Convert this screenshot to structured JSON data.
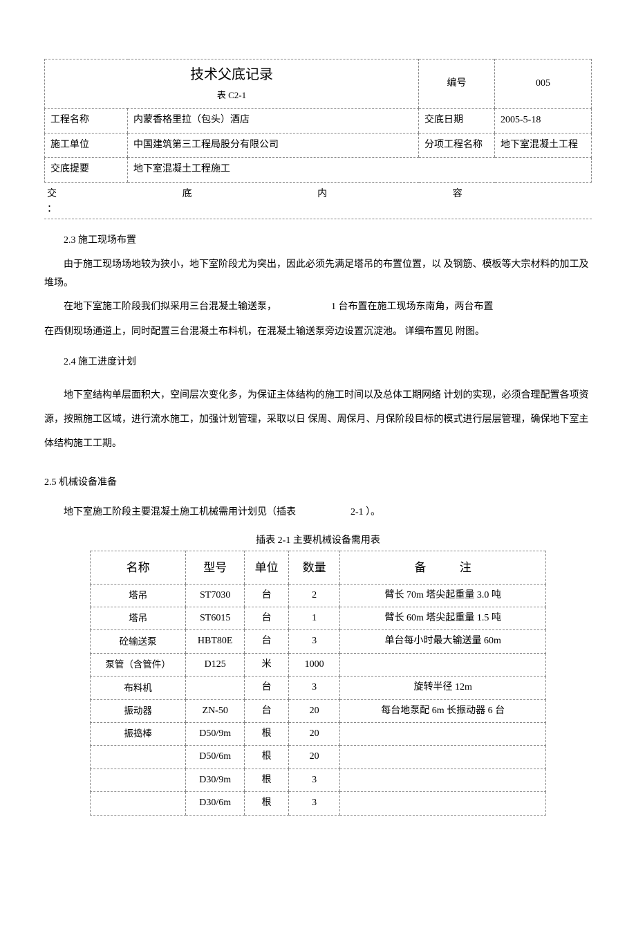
{
  "header": {
    "title": "技术父底记录",
    "subtitle": "表 C2-1",
    "numberLabel": "编号",
    "numberValue": "005",
    "rows": [
      {
        "l1": "工程名称",
        "v1": "内蒙香格里拉（包头）酒店",
        "l2": "交底日期",
        "v2": "2005-5-18"
      },
      {
        "l1": "施工单位",
        "v1": "中国建筑第三工程局股分有限公司",
        "l2": "分项工程名称",
        "v2": "地下室混凝土工程"
      }
    ],
    "summaryLabel": "交底提要",
    "summaryValue": "地下室混凝土工程施工",
    "spacedLabel": "交 底 内 容",
    "spacedChars": [
      "交",
      "底",
      "内",
      "容",
      "："
    ]
  },
  "body": {
    "s23_title": "2.3 施工现场布置",
    "s23_p1": "由于施工现场场地较为狭小，地下室阶段尤为突出，因此必须先满足塔吊的布置位置，以 及钢筋、模板等大宗材料的加工及堆场。",
    "s23_p2a": "在地下室施工阶段我们拟采用三台混凝土输送泵，",
    "s23_p2b": "1 台布置在施工现场东南角，两台布置",
    "s23_p3": "在西侧现场通道上，同时配置三台混凝土布料机，在混凝土输送泵旁边设置沉淀池。 详细布置见 附图。",
    "s24_title": "2.4 施工进度计划",
    "s24_p1": "地下室结构单层面积大，空间层次变化多，为保证主体结构的施工时间以及总体工期网络 计划的实现，必须合理配置各项资源，按照施工区域，进行流水施工，加强计划管理，采取以日 保周、周保月、月保阶段目标的模式进行层层管理，确保地下室主体结构施工工期。",
    "s25_title": "2.5 机械设备准备",
    "s25_p1a": "地下室施工阶段主要混凝土施工机械需用计划见（插表",
    "s25_p1b": "2-1 ）。"
  },
  "eqTable": {
    "caption": "插表 2-1 主要机械设备需用表",
    "headers": {
      "name": "名称",
      "model": "型号",
      "unit": "单位",
      "qty": "数量",
      "note": "备",
      "note2": "注"
    },
    "rows": [
      {
        "name": "塔吊",
        "model": "ST7030",
        "unit": "台",
        "qty": "2",
        "note": "臂长 70m 塔尖起重量 3.0 吨"
      },
      {
        "name": "塔吊",
        "model": "ST6015",
        "unit": "台",
        "qty": "1",
        "note": "臂长 60m 塔尖起重量 1.5 吨"
      },
      {
        "name": "砼输送泵",
        "model": "HBT80E",
        "unit": "台",
        "qty": "3",
        "note": "单台每小时最大输送量 60m"
      },
      {
        "name": "泵管（含管件）",
        "model": "D125",
        "unit": "米",
        "qty": "1000",
        "note": ""
      },
      {
        "name": "布料机",
        "model": "",
        "unit": "台",
        "qty": "3",
        "note": "旋转半径 12m"
      },
      {
        "name": "振动器",
        "model": "ZN-50",
        "unit": "台",
        "qty": "20",
        "note": "每台地泵配 6m 长振动器 6 台"
      },
      {
        "name": "振捣棒",
        "model": "D50/9m",
        "unit": "根",
        "qty": "20",
        "note": ""
      },
      {
        "name": "",
        "model": "D50/6m",
        "unit": "根",
        "qty": "20",
        "note": ""
      },
      {
        "name": "",
        "model": "D30/9m",
        "unit": "根",
        "qty": "3",
        "note": ""
      },
      {
        "name": "",
        "model": "D30/6m",
        "unit": "根",
        "qty": "3",
        "note": ""
      }
    ]
  }
}
